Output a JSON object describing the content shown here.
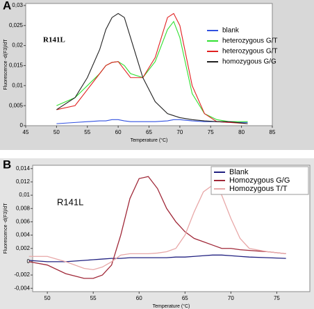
{
  "chart_data": [
    {
      "type": "line",
      "label": "A",
      "annotation": "R141L",
      "xlabel": "Temperature (°C)",
      "ylabel": "Fluorescence -d(F3)/dT",
      "x": [
        50,
        53,
        55,
        57,
        58,
        59,
        60,
        61,
        62,
        64,
        66,
        68,
        69,
        70,
        72,
        74,
        76,
        78,
        81
      ],
      "series": [
        {
          "name": "blank",
          "color": "#3050e0",
          "values": [
            0.0005,
            0.0008,
            0.001,
            0.0012,
            0.0012,
            0.0015,
            0.0015,
            0.0012,
            0.001,
            0.001,
            0.001,
            0.0012,
            0.0015,
            0.0015,
            0.0012,
            0.001,
            0.001,
            0.0008,
            0.0008
          ]
        },
        {
          "name": "heterozygous G/T",
          "color": "#30e030",
          "values": [
            0.005,
            0.007,
            0.01,
            0.013,
            0.015,
            0.0158,
            0.016,
            0.015,
            0.013,
            0.012,
            0.016,
            0.024,
            0.026,
            0.022,
            0.008,
            0.003,
            0.0015,
            0.001,
            0.001
          ]
        },
        {
          "name": "heterozygous G/T",
          "color": "#e02020",
          "values": [
            0.004,
            0.005,
            0.009,
            0.013,
            0.015,
            0.0158,
            0.016,
            0.014,
            0.012,
            0.012,
            0.017,
            0.027,
            0.028,
            0.025,
            0.01,
            0.003,
            0.001,
            0.0008,
            0.0005
          ]
        },
        {
          "name": "homozygous G/G",
          "color": "#202020",
          "values": [
            0.004,
            0.007,
            0.012,
            0.019,
            0.024,
            0.027,
            0.028,
            0.027,
            0.022,
            0.012,
            0.006,
            0.003,
            0.0025,
            0.002,
            0.0015,
            0.0012,
            0.001,
            0.001,
            0.0005
          ]
        }
      ],
      "xlim": [
        45,
        85
      ],
      "xticks": [
        45,
        50,
        55,
        60,
        65,
        70,
        75,
        80,
        85
      ],
      "ylim": [
        0,
        0.0305
      ],
      "yticks": [
        0,
        {
          "value": 0.005,
          "label": "0,005"
        },
        {
          "value": 0.01,
          "label": "0,01"
        },
        {
          "value": 0.015,
          "label": "0,015"
        },
        {
          "value": 0.02,
          "label": "0,02"
        },
        {
          "value": 0.025,
          "label": "0,025"
        },
        {
          "value": 0.03,
          "label": "0,03"
        }
      ],
      "legend": "upper right"
    },
    {
      "type": "line",
      "label": "B",
      "annotation": "R141L",
      "xlabel": "Temperature (°C)",
      "ylabel": "Fluorescence -d(F3)/dT",
      "x": [
        48,
        50,
        52,
        54,
        55,
        56,
        57,
        58,
        59,
        60,
        61,
        62,
        63,
        64,
        65,
        66,
        67,
        68,
        69,
        70,
        71,
        72,
        74,
        76
      ],
      "series": [
        {
          "name": "Blank",
          "color": "#202080",
          "values": [
            0.0002,
            0,
            0,
            0.0002,
            0.0003,
            0.0004,
            0.0005,
            0.0005,
            0.0006,
            0.0006,
            0.0006,
            0.0006,
            0.0006,
            0.0007,
            0.0007,
            0.0008,
            0.0009,
            0.001,
            0.001,
            0.0009,
            0.0008,
            0.0007,
            0.0006,
            0.0005
          ]
        },
        {
          "name": "Homozygous G/G",
          "color": "#a02838",
          "values": [
            0,
            -0.0005,
            -0.0018,
            -0.0025,
            -0.0025,
            -0.002,
            -0.0005,
            0.004,
            0.0095,
            0.0125,
            0.0128,
            0.011,
            0.008,
            0.006,
            0.0045,
            0.0035,
            0.003,
            0.0025,
            0.002,
            0.002,
            0.0018,
            0.0017,
            0.0015,
            0.0012
          ]
        },
        {
          "name": "Homozygous T/T",
          "color": "#e8a8a8",
          "values": [
            0.0008,
            0.0008,
            0,
            -0.001,
            -0.0012,
            -0.0008,
            0,
            0.001,
            0.0012,
            0.0012,
            0.0012,
            0.0013,
            0.0015,
            0.002,
            0.004,
            0.0075,
            0.0105,
            0.0115,
            0.01,
            0.0065,
            0.0035,
            0.002,
            0.0015,
            0.0012
          ]
        }
      ],
      "xlim": [
        48.4,
        78.6
      ],
      "xticks": [
        50,
        55,
        60,
        65,
        70,
        75
      ],
      "ylim": [
        -0.0045,
        0.0145
      ],
      "yticks": [
        {
          "value": -0.004,
          "label": "-0,004"
        },
        {
          "value": -0.002,
          "label": "-0,002"
        },
        0,
        {
          "value": 0.002,
          "label": "0,002"
        },
        {
          "value": 0.004,
          "label": "0,004"
        },
        {
          "value": 0.006,
          "label": "0,006"
        },
        {
          "value": 0.008,
          "label": "0,008"
        },
        {
          "value": 0.01,
          "label": "0,01"
        },
        {
          "value": 0.012,
          "label": "0,012"
        },
        {
          "value": 0.014,
          "label": "0,014"
        }
      ],
      "legend": "upper right"
    }
  ]
}
